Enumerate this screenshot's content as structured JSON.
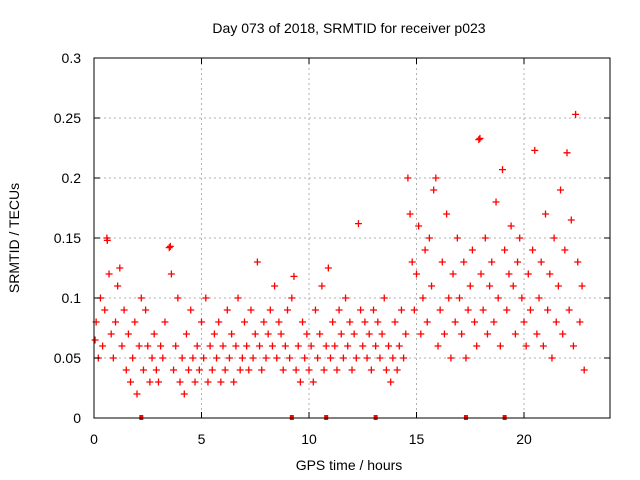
{
  "chart_data": {
    "type": "scatter",
    "title": "Day 073 of 2018, SRMTID for receiver p023",
    "xlabel": "GPS time / hours",
    "ylabel": "SRMTID / TECUs",
    "xlim": [
      0,
      24
    ],
    "ylim": [
      0,
      0.3
    ],
    "xticks": [
      0,
      5,
      10,
      15,
      20
    ],
    "xtick_labels": [
      "0",
      "5",
      "10",
      "15",
      "20"
    ],
    "yticks": [
      0,
      0.05,
      0.1,
      0.15,
      0.2,
      0.25,
      0.3
    ],
    "ytick_labels": [
      "0",
      "0.05",
      "0.1",
      "0.15",
      "0.2",
      "0.25",
      "0.3"
    ],
    "grid": true,
    "marker": "+",
    "color": "#ff0000",
    "series": [
      {
        "name": "SRMTID",
        "points": [
          [
            0.05,
            0.065
          ],
          [
            0.1,
            0.08
          ],
          [
            0.2,
            0.05
          ],
          [
            0.3,
            0.1
          ],
          [
            0.4,
            0.06
          ],
          [
            0.5,
            0.09
          ],
          [
            0.6,
            0.15
          ],
          [
            0.62,
            0.148
          ],
          [
            0.7,
            0.12
          ],
          [
            0.8,
            0.07
          ],
          [
            0.9,
            0.05
          ],
          [
            1.0,
            0.08
          ],
          [
            1.1,
            0.11
          ],
          [
            1.2,
            0.125
          ],
          [
            1.3,
            0.06
          ],
          [
            1.4,
            0.09
          ],
          [
            1.5,
            0.04
          ],
          [
            1.6,
            0.07
          ],
          [
            1.7,
            0.03
          ],
          [
            1.8,
            0.05
          ],
          [
            1.9,
            0.08
          ],
          [
            2.0,
            0.02
          ],
          [
            2.1,
            0.06
          ],
          [
            2.2,
            0.1
          ],
          [
            2.3,
            0.04
          ],
          [
            2.4,
            0.09
          ],
          [
            2.5,
            0.06
          ],
          [
            2.6,
            0.03
          ],
          [
            2.7,
            0.05
          ],
          [
            2.8,
            0.07
          ],
          [
            2.9,
            0.04
          ],
          [
            3.0,
            0.03
          ],
          [
            3.1,
            0.06
          ],
          [
            3.2,
            0.05
          ],
          [
            3.3,
            0.08
          ],
          [
            3.5,
            0.142
          ],
          [
            3.55,
            0.143
          ],
          [
            3.6,
            0.12
          ],
          [
            3.7,
            0.04
          ],
          [
            3.8,
            0.06
          ],
          [
            3.9,
            0.1
          ],
          [
            4.0,
            0.03
          ],
          [
            4.1,
            0.05
          ],
          [
            4.2,
            0.02
          ],
          [
            4.3,
            0.07
          ],
          [
            4.4,
            0.04
          ],
          [
            4.5,
            0.09
          ],
          [
            4.6,
            0.05
          ],
          [
            4.7,
            0.03
          ],
          [
            4.8,
            0.06
          ],
          [
            4.9,
            0.04
          ],
          [
            5.0,
            0.08
          ],
          [
            5.1,
            0.05
          ],
          [
            5.2,
            0.1
          ],
          [
            5.3,
            0.03
          ],
          [
            5.4,
            0.06
          ],
          [
            5.5,
            0.04
          ],
          [
            5.6,
            0.07
          ],
          [
            5.7,
            0.05
          ],
          [
            5.8,
            0.08
          ],
          [
            5.9,
            0.03
          ],
          [
            6.0,
            0.06
          ],
          [
            6.1,
            0.04
          ],
          [
            6.2,
            0.09
          ],
          [
            6.3,
            0.05
          ],
          [
            6.4,
            0.07
          ],
          [
            6.5,
            0.03
          ],
          [
            6.6,
            0.06
          ],
          [
            6.7,
            0.1
          ],
          [
            6.8,
            0.04
          ],
          [
            6.9,
            0.05
          ],
          [
            7.0,
            0.08
          ],
          [
            7.1,
            0.06
          ],
          [
            7.2,
            0.04
          ],
          [
            7.3,
            0.09
          ],
          [
            7.4,
            0.05
          ],
          [
            7.5,
            0.07
          ],
          [
            7.6,
            0.13
          ],
          [
            7.7,
            0.06
          ],
          [
            7.8,
            0.04
          ],
          [
            7.9,
            0.08
          ],
          [
            8.0,
            0.05
          ],
          [
            8.1,
            0.07
          ],
          [
            8.2,
            0.09
          ],
          [
            8.3,
            0.06
          ],
          [
            8.4,
            0.11
          ],
          [
            8.5,
            0.05
          ],
          [
            8.6,
            0.08
          ],
          [
            8.7,
            0.07
          ],
          [
            8.8,
            0.04
          ],
          [
            8.9,
            0.06
          ],
          [
            9.0,
            0.09
          ],
          [
            9.1,
            0.05
          ],
          [
            9.2,
            0.1
          ],
          [
            9.3,
            0.118
          ],
          [
            9.4,
            0.04
          ],
          [
            9.5,
            0.06
          ],
          [
            9.6,
            0.03
          ],
          [
            9.7,
            0.08
          ],
          [
            9.8,
            0.05
          ],
          [
            9.9,
            0.07
          ],
          [
            10.0,
            0.04
          ],
          [
            10.1,
            0.06
          ],
          [
            10.2,
            0.03
          ],
          [
            10.3,
            0.09
          ],
          [
            10.4,
            0.05
          ],
          [
            10.5,
            0.07
          ],
          [
            10.6,
            0.11
          ],
          [
            10.7,
            0.04
          ],
          [
            10.8,
            0.06
          ],
          [
            10.9,
            0.125
          ],
          [
            11.0,
            0.05
          ],
          [
            11.1,
            0.08
          ],
          [
            11.2,
            0.06
          ],
          [
            11.3,
            0.04
          ],
          [
            11.4,
            0.09
          ],
          [
            11.5,
            0.07
          ],
          [
            11.6,
            0.05
          ],
          [
            11.7,
            0.1
          ],
          [
            11.8,
            0.06
          ],
          [
            11.9,
            0.08
          ],
          [
            12.0,
            0.04
          ],
          [
            12.1,
            0.07
          ],
          [
            12.2,
            0.05
          ],
          [
            12.3,
            0.162
          ],
          [
            12.4,
            0.09
          ],
          [
            12.5,
            0.06
          ],
          [
            12.6,
            0.08
          ],
          [
            12.7,
            0.05
          ],
          [
            12.8,
            0.07
          ],
          [
            12.9,
            0.04
          ],
          [
            13.0,
            0.09
          ],
          [
            13.1,
            0.06
          ],
          [
            13.2,
            0.08
          ],
          [
            13.3,
            0.05
          ],
          [
            13.4,
            0.07
          ],
          [
            13.5,
            0.1
          ],
          [
            13.6,
            0.04
          ],
          [
            13.7,
            0.06
          ],
          [
            13.8,
            0.03
          ],
          [
            13.9,
            0.05
          ],
          [
            14.0,
            0.08
          ],
          [
            14.1,
            0.04
          ],
          [
            14.2,
            0.06
          ],
          [
            14.3,
            0.09
          ],
          [
            14.4,
            0.05
          ],
          [
            14.5,
            0.07
          ],
          [
            14.6,
            0.2
          ],
          [
            14.7,
            0.17
          ],
          [
            14.8,
            0.13
          ],
          [
            14.9,
            0.09
          ],
          [
            15.0,
            0.12
          ],
          [
            15.1,
            0.16
          ],
          [
            15.2,
            0.07
          ],
          [
            15.3,
            0.1
          ],
          [
            15.4,
            0.14
          ],
          [
            15.5,
            0.08
          ],
          [
            15.6,
            0.15
          ],
          [
            15.7,
            0.11
          ],
          [
            15.8,
            0.19
          ],
          [
            15.9,
            0.2
          ],
          [
            16.0,
            0.06
          ],
          [
            16.1,
            0.09
          ],
          [
            16.2,
            0.13
          ],
          [
            16.3,
            0.07
          ],
          [
            16.4,
            0.17
          ],
          [
            16.5,
            0.1
          ],
          [
            16.6,
            0.05
          ],
          [
            16.7,
            0.12
          ],
          [
            16.8,
            0.08
          ],
          [
            16.9,
            0.15
          ],
          [
            17.0,
            0.1
          ],
          [
            17.1,
            0.07
          ],
          [
            17.2,
            0.13
          ],
          [
            17.3,
            0.05
          ],
          [
            17.4,
            0.09
          ],
          [
            17.5,
            0.11
          ],
          [
            17.6,
            0.14
          ],
          [
            17.7,
            0.08
          ],
          [
            17.8,
            0.06
          ],
          [
            17.9,
            0.232
          ],
          [
            17.95,
            0.233
          ],
          [
            18.0,
            0.12
          ],
          [
            18.1,
            0.09
          ],
          [
            18.2,
            0.15
          ],
          [
            18.3,
            0.07
          ],
          [
            18.4,
            0.11
          ],
          [
            18.5,
            0.13
          ],
          [
            18.6,
            0.08
          ],
          [
            18.7,
            0.18
          ],
          [
            18.8,
            0.1
          ],
          [
            18.9,
            0.06
          ],
          [
            19.0,
            0.207
          ],
          [
            19.1,
            0.14
          ],
          [
            19.2,
            0.09
          ],
          [
            19.3,
            0.12
          ],
          [
            19.4,
            0.16
          ],
          [
            19.5,
            0.11
          ],
          [
            19.6,
            0.07
          ],
          [
            19.7,
            0.13
          ],
          [
            19.8,
            0.15
          ],
          [
            19.9,
            0.1
          ],
          [
            20.0,
            0.08
          ],
          [
            20.1,
            0.06
          ],
          [
            20.2,
            0.12
          ],
          [
            20.3,
            0.09
          ],
          [
            20.4,
            0.14
          ],
          [
            20.5,
            0.223
          ],
          [
            20.6,
            0.07
          ],
          [
            20.7,
            0.1
          ],
          [
            20.8,
            0.13
          ],
          [
            20.9,
            0.06
          ],
          [
            21.0,
            0.17
          ],
          [
            21.1,
            0.09
          ],
          [
            21.2,
            0.12
          ],
          [
            21.3,
            0.05
          ],
          [
            21.4,
            0.15
          ],
          [
            21.5,
            0.08
          ],
          [
            21.6,
            0.11
          ],
          [
            21.7,
            0.19
          ],
          [
            21.8,
            0.07
          ],
          [
            21.9,
            0.14
          ],
          [
            22.0,
            0.221
          ],
          [
            22.1,
            0.09
          ],
          [
            22.2,
            0.165
          ],
          [
            22.3,
            0.06
          ],
          [
            22.4,
            0.253
          ],
          [
            22.5,
            0.13
          ],
          [
            22.6,
            0.08
          ],
          [
            22.7,
            0.11
          ],
          [
            22.8,
            0.04
          ]
        ]
      }
    ],
    "gap_markers_x": [
      2.2,
      9.2,
      10.8,
      13.1,
      17.3,
      19.1
    ]
  }
}
